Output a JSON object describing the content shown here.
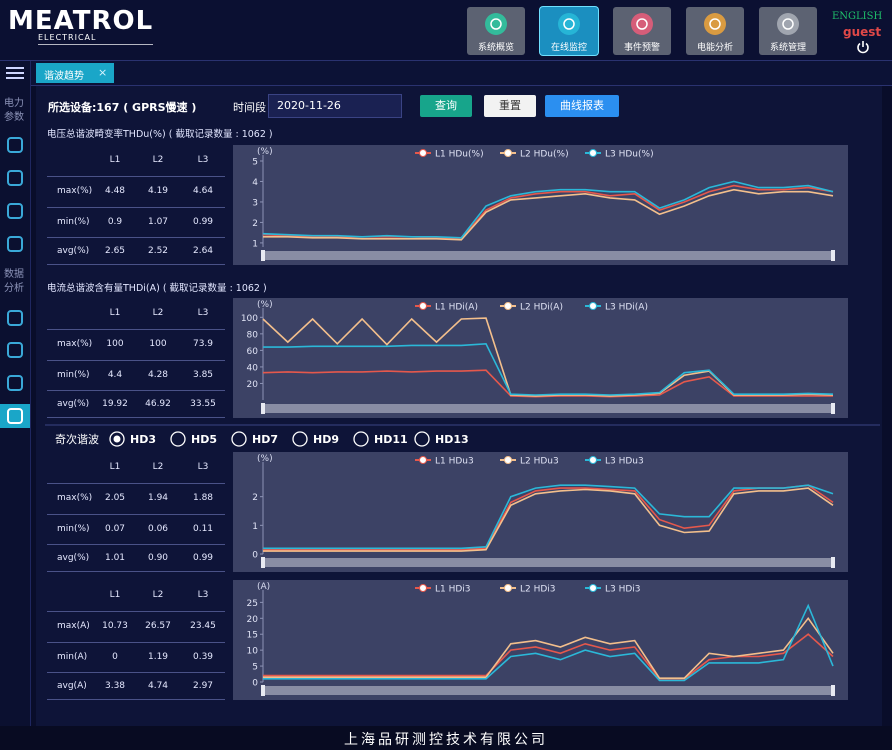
{
  "header": {
    "logo": "MEATROL",
    "logo_sub": "ELECTRICAL",
    "nav": [
      "系统概览",
      "在线监控",
      "事件预警",
      "电能分析",
      "系统管理"
    ],
    "active_nav": 1,
    "language": "ENGLISH",
    "user": "guest"
  },
  "sidebar": [
    "电力参数",
    "数据分析"
  ],
  "tab": "谐波趋势",
  "toolbar": {
    "device": "所选设备:167 ( GPRS慢速 )",
    "time_label": "时间段",
    "date": "2020-11-26",
    "buttons": [
      "查询",
      "重置",
      "曲线报表"
    ]
  },
  "sections": [
    "电压总谐波畸变率THDu(%) ( 截取记录数量 : 1062 )",
    "电流总谐波含有量THDi(A) ( 截取记录数量 : 1062 )"
  ],
  "harmonics": {
    "label": "奇次谐波",
    "options": [
      "HD3",
      "HD5",
      "HD7",
      "HD9",
      "HD11",
      "HD13"
    ],
    "selected": 0
  },
  "tables": [
    {
      "columns": [
        "L1",
        "L2",
        "L3"
      ],
      "rows": [
        [
          "max(%)",
          "4.48",
          "4.19",
          "4.64"
        ],
        [
          "min(%)",
          "0.9",
          "1.07",
          "0.99"
        ],
        [
          "avg(%)",
          "2.65",
          "2.52",
          "2.64"
        ]
      ]
    },
    {
      "columns": [
        "L1",
        "L2",
        "L3"
      ],
      "rows": [
        [
          "max(%)",
          "100",
          "100",
          "73.9"
        ],
        [
          "min(%)",
          "4.4",
          "4.28",
          "3.85"
        ],
        [
          "avg(%)",
          "19.92",
          "46.92",
          "33.55"
        ]
      ]
    },
    {
      "columns": [
        "L1",
        "L2",
        "L3"
      ],
      "rows": [
        [
          "max(%)",
          "2.05",
          "1.94",
          "1.88"
        ],
        [
          "min(%)",
          "0.07",
          "0.06",
          "0.11"
        ],
        [
          "avg(%)",
          "1.01",
          "0.90",
          "0.99"
        ]
      ]
    },
    {
      "columns": [
        "L1",
        "L2",
        "L3"
      ],
      "rows": [
        [
          "max(A)",
          "10.73",
          "26.57",
          "23.45"
        ],
        [
          "min(A)",
          "0",
          "1.19",
          "0.39"
        ],
        [
          "avg(A)",
          "3.38",
          "4.74",
          "2.97"
        ]
      ]
    }
  ],
  "chart_data": [
    {
      "type": "line",
      "y_label": "(%)",
      "ylim": [
        0.8,
        5
      ],
      "yticks": [
        1,
        2,
        3,
        4,
        5
      ],
      "series": [
        {
          "name": "L1 HDu(%)",
          "color": "#e5584c",
          "values": [
            1.4,
            1.35,
            1.3,
            1.3,
            1.3,
            1.3,
            1.3,
            1.25,
            1.2,
            2.6,
            3.2,
            3.4,
            3.5,
            3.5,
            3.3,
            3.4,
            2.6,
            3.0,
            3.5,
            3.8,
            3.6,
            3.6,
            3.7,
            3.5
          ]
        },
        {
          "name": "L2 HDu(%)",
          "color": "#f3bf8c",
          "values": [
            1.3,
            1.3,
            1.25,
            1.25,
            1.2,
            1.2,
            1.2,
            1.2,
            1.15,
            2.5,
            3.1,
            3.2,
            3.3,
            3.4,
            3.2,
            3.1,
            2.4,
            2.8,
            3.3,
            3.6,
            3.4,
            3.5,
            3.5,
            3.3
          ]
        },
        {
          "name": "L3 HDu(%)",
          "color": "#2bb8d8",
          "values": [
            1.45,
            1.4,
            1.35,
            1.35,
            1.3,
            1.35,
            1.3,
            1.3,
            1.25,
            2.8,
            3.3,
            3.5,
            3.6,
            3.6,
            3.5,
            3.5,
            2.7,
            3.1,
            3.7,
            4.0,
            3.7,
            3.7,
            3.8,
            3.5
          ]
        }
      ]
    },
    {
      "type": "line",
      "y_label": "(%)",
      "ylim": [
        0,
        104
      ],
      "yticks": [
        20,
        40,
        60,
        80,
        100
      ],
      "series": [
        {
          "name": "L1 HDi(A)",
          "color": "#e5584c",
          "values": [
            33,
            34,
            33,
            34,
            34,
            35,
            34,
            35,
            35,
            36,
            5,
            4,
            5,
            5,
            4,
            5,
            6,
            22,
            28,
            5,
            5,
            5,
            5,
            5
          ]
        },
        {
          "name": "L2 HDi(A)",
          "color": "#f3bf8c",
          "values": [
            98,
            70,
            98,
            68,
            98,
            67,
            98,
            70,
            98,
            99,
            6,
            5,
            6,
            6,
            5,
            6,
            8,
            30,
            35,
            6,
            6,
            6,
            7,
            6
          ]
        },
        {
          "name": "L3 HDi(A)",
          "color": "#2bb8d8",
          "values": [
            64,
            64,
            65,
            65,
            65,
            65,
            66,
            66,
            66,
            68,
            7,
            6,
            7,
            7,
            6,
            7,
            9,
            33,
            36,
            7,
            7,
            7,
            8,
            7
          ]
        }
      ]
    },
    {
      "type": "line",
      "y_label": "(%)",
      "ylim": [
        0,
        3
      ],
      "yticks": [
        0,
        1,
        2
      ],
      "series": [
        {
          "name": "L1 HDu3",
          "color": "#e5584c",
          "values": [
            0.15,
            0.15,
            0.15,
            0.15,
            0.15,
            0.15,
            0.15,
            0.15,
            0.15,
            0.2,
            1.8,
            2.2,
            2.3,
            2.3,
            2.25,
            2.2,
            1.2,
            0.9,
            1.0,
            2.2,
            2.3,
            2.3,
            2.4,
            1.8
          ]
        },
        {
          "name": "L2 HDu3",
          "color": "#f3bf8c",
          "values": [
            0.1,
            0.1,
            0.1,
            0.1,
            0.1,
            0.1,
            0.1,
            0.1,
            0.1,
            0.15,
            1.7,
            2.1,
            2.2,
            2.25,
            2.2,
            2.1,
            1.0,
            0.75,
            0.8,
            2.1,
            2.2,
            2.2,
            2.3,
            1.7
          ]
        },
        {
          "name": "L3 HDu3",
          "color": "#2bb8d8",
          "values": [
            0.2,
            0.2,
            0.2,
            0.2,
            0.2,
            0.2,
            0.2,
            0.2,
            0.2,
            0.25,
            2.0,
            2.3,
            2.4,
            2.4,
            2.35,
            2.3,
            1.4,
            1.3,
            1.3,
            2.3,
            2.3,
            2.3,
            2.4,
            2.1
          ]
        }
      ]
    },
    {
      "type": "line",
      "y_label": "(A)",
      "ylim": [
        0,
        27
      ],
      "yticks": [
        0,
        5,
        10,
        15,
        20,
        25
      ],
      "series": [
        {
          "name": "L1 HDi3",
          "color": "#e5584c",
          "values": [
            2,
            2,
            2,
            2,
            2,
            2,
            2,
            2,
            2,
            2,
            10,
            11,
            9,
            12,
            10,
            11,
            1,
            1,
            7,
            8,
            8,
            9,
            15,
            8
          ]
        },
        {
          "name": "L2 HDi3",
          "color": "#f3bf8c",
          "values": [
            1.5,
            1.5,
            1.5,
            1.5,
            1.5,
            1.5,
            1.5,
            1.5,
            1.5,
            1.5,
            12,
            13,
            11,
            14,
            12,
            13,
            1.2,
            1.2,
            9,
            8,
            9,
            10,
            20,
            9
          ]
        },
        {
          "name": "L3 HDi3",
          "color": "#2bb8d8",
          "values": [
            1,
            1,
            1,
            1,
            1,
            1,
            1,
            1,
            1,
            1,
            8,
            9,
            7,
            10,
            8,
            9,
            0.5,
            0.5,
            6,
            6,
            6,
            7,
            24,
            5
          ]
        }
      ]
    }
  ],
  "footer": "上海品研测控技术有限公司"
}
